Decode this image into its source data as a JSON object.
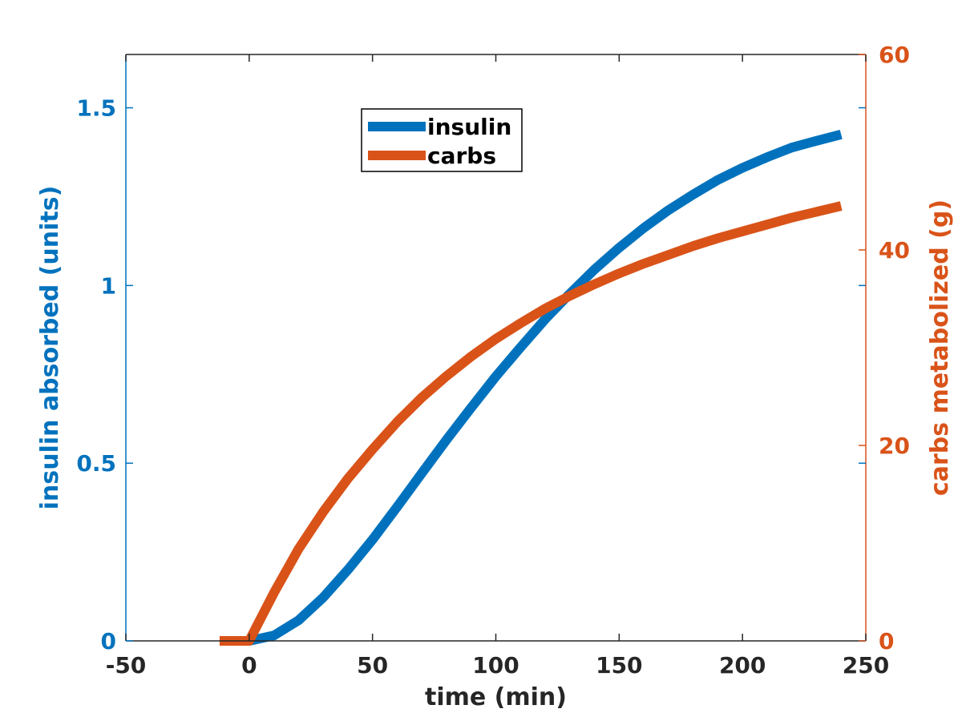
{
  "chart_data": {
    "type": "line",
    "xlabel": "time (min)",
    "ylabel_left": "insulin absorbed (units)",
    "ylabel_right": "carbs metabolized (g)",
    "xlim": [
      -50,
      250
    ],
    "ylim_left": [
      0,
      1.65
    ],
    "ylim_right": [
      0,
      60
    ],
    "x_ticks": [
      -50,
      0,
      50,
      100,
      150,
      200,
      250
    ],
    "y_left_ticks": [
      0,
      0.5,
      1,
      1.5
    ],
    "y_left_tick_labels": [
      "0",
      "0.5",
      "1",
      "1.5"
    ],
    "y_right_ticks": [
      0,
      20,
      40,
      60
    ],
    "y_right_tick_labels": [
      "0",
      "20",
      "40",
      "60"
    ],
    "legend_position": "top-center",
    "grid": false,
    "colors": {
      "insulin": "#0072BD",
      "carbs": "#D95319",
      "axis": "#262626"
    },
    "series": [
      {
        "name": "insulin",
        "axis": "left",
        "x": [
          -10,
          0,
          10,
          20,
          30,
          40,
          50,
          60,
          70,
          80,
          90,
          100,
          110,
          120,
          130,
          140,
          150,
          160,
          170,
          180,
          190,
          200,
          210,
          220,
          230,
          240
        ],
        "y": [
          0,
          0,
          0.015,
          0.058,
          0.122,
          0.2,
          0.285,
          0.377,
          0.472,
          0.566,
          0.656,
          0.744,
          0.826,
          0.905,
          0.977,
          1.045,
          1.106,
          1.162,
          1.212,
          1.256,
          1.297,
          1.331,
          1.361,
          1.388,
          1.407,
          1.425
        ]
      },
      {
        "name": "carbs",
        "axis": "right",
        "x": [
          -12,
          0,
          10,
          20,
          30,
          40,
          50,
          60,
          70,
          80,
          90,
          100,
          110,
          120,
          130,
          140,
          150,
          160,
          170,
          180,
          190,
          200,
          210,
          220,
          230,
          240
        ],
        "y": [
          0,
          0,
          4.9,
          9.4,
          13.2,
          16.6,
          19.6,
          22.4,
          24.9,
          27.1,
          29.1,
          30.9,
          32.5,
          34.0,
          35.3,
          36.5,
          37.6,
          38.6,
          39.5,
          40.4,
          41.2,
          41.9,
          42.6,
          43.3,
          43.9,
          44.5
        ]
      }
    ]
  }
}
